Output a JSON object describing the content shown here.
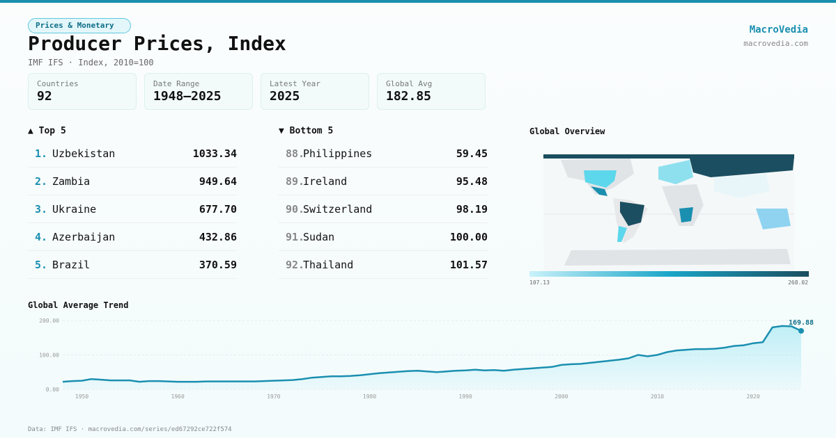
{
  "header": {
    "tag": "Prices & Monetary",
    "title": "Producer Prices, Index",
    "subtitle": "IMF IFS · Index, 2010=100",
    "brand": "MacroVedia",
    "site": "macrovedia.com"
  },
  "stats": [
    {
      "label": "Countries",
      "value": "92"
    },
    {
      "label": "Date Range",
      "value": "1948–2025"
    },
    {
      "label": "Latest Year",
      "value": "2025"
    },
    {
      "label": "Global Avg",
      "value": "182.85"
    }
  ],
  "top": {
    "title": "▲ Top 5",
    "rows": [
      {
        "rank": "1.",
        "name": "Uzbekistan",
        "value": "1033.34"
      },
      {
        "rank": "2.",
        "name": "Zambia",
        "value": "949.64"
      },
      {
        "rank": "3.",
        "name": "Ukraine",
        "value": "677.70"
      },
      {
        "rank": "4.",
        "name": "Azerbaijan",
        "value": "432.86"
      },
      {
        "rank": "5.",
        "name": "Brazil",
        "value": "370.59"
      }
    ]
  },
  "bottom": {
    "title": "▼ Bottom 5",
    "rows": [
      {
        "rank": "88.",
        "name": "Philippines",
        "value": "59.45"
      },
      {
        "rank": "89.",
        "name": "Ireland",
        "value": "95.48"
      },
      {
        "rank": "90.",
        "name": "Switzerland",
        "value": "98.19"
      },
      {
        "rank": "91.",
        "name": "Sudan",
        "value": "100.00"
      },
      {
        "rank": "92.",
        "name": "Thailand",
        "value": "101.57"
      }
    ]
  },
  "map": {
    "title": "Global Overview",
    "min_label": "107.13",
    "max_label": "268.02"
  },
  "chart_data": {
    "type": "line",
    "title": "Global Average Trend",
    "color": "#1a8fb0",
    "x": [
      1948,
      1949,
      1950,
      1951,
      1952,
      1953,
      1954,
      1955,
      1956,
      1957,
      1958,
      1959,
      1960,
      1961,
      1962,
      1963,
      1964,
      1965,
      1966,
      1967,
      1968,
      1969,
      1970,
      1971,
      1972,
      1973,
      1974,
      1975,
      1976,
      1977,
      1978,
      1979,
      1980,
      1981,
      1982,
      1983,
      1984,
      1985,
      1986,
      1987,
      1988,
      1989,
      1990,
      1991,
      1992,
      1993,
      1994,
      1995,
      1996,
      1997,
      1998,
      1999,
      2000,
      2001,
      2002,
      2003,
      2004,
      2005,
      2006,
      2007,
      2008,
      2009,
      2010,
      2011,
      2012,
      2013,
      2014,
      2015,
      2016,
      2017,
      2018,
      2019,
      2020,
      2021,
      2022,
      2023,
      2024,
      2025
    ],
    "values": [
      22,
      24,
      25,
      30,
      28,
      26,
      26,
      26,
      22,
      24,
      24,
      23,
      22,
      22,
      22,
      23,
      23,
      23,
      23,
      23,
      23,
      24,
      25,
      26,
      27,
      30,
      34,
      36,
      38,
      38,
      39,
      41,
      44,
      47,
      49,
      51,
      53,
      54,
      52,
      50,
      52,
      54,
      55,
      57,
      55,
      56,
      54,
      57,
      59,
      61,
      63,
      65,
      71,
      73,
      74,
      77,
      80,
      83,
      86,
      90,
      100,
      96,
      100,
      108,
      113,
      115,
      117,
      117,
      118,
      121,
      126,
      128,
      134,
      137,
      180,
      184,
      183,
      169.88
    ],
    "last_label": "169.88",
    "xlim": [
      1948,
      2025
    ],
    "xticks": [
      1950,
      1960,
      1970,
      1980,
      1990,
      2000,
      2010,
      2020
    ],
    "ylim": [
      0,
      200
    ],
    "yticks": [
      {
        "value": 0,
        "label": "0.00"
      },
      {
        "value": 100,
        "label": "100.00"
      },
      {
        "value": 200,
        "label": "200.00"
      }
    ],
    "grid": true
  },
  "footer": "Data: IMF IFS · macrovedia.com/series/ed67292ce722f574"
}
